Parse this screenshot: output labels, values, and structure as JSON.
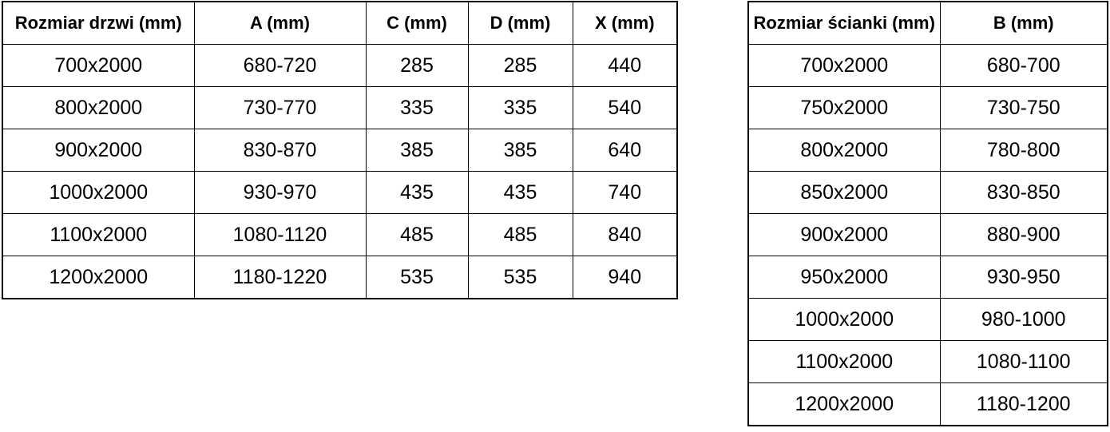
{
  "door_table": {
    "headers": [
      "Rozmiar drzwi (mm)",
      "A (mm)",
      "C (mm)",
      "D (mm)",
      "X (mm)"
    ],
    "rows": [
      [
        "700x2000",
        "680-720",
        "285",
        "285",
        "440"
      ],
      [
        "800x2000",
        "730-770",
        "335",
        "335",
        "540"
      ],
      [
        "900x2000",
        "830-870",
        "385",
        "385",
        "640"
      ],
      [
        "1000x2000",
        "930-970",
        "435",
        "435",
        "740"
      ],
      [
        "1100x2000",
        "1080-1120",
        "485",
        "485",
        "840"
      ],
      [
        "1200x2000",
        "1180-1220",
        "535",
        "535",
        "940"
      ]
    ]
  },
  "wall_table": {
    "headers": [
      "Rozmiar ścianki (mm)",
      "B (mm)"
    ],
    "rows": [
      [
        "700x2000",
        "680-700"
      ],
      [
        "750x2000",
        "730-750"
      ],
      [
        "800x2000",
        "780-800"
      ],
      [
        "850x2000",
        "830-850"
      ],
      [
        "900x2000",
        "880-900"
      ],
      [
        "950x2000",
        "930-950"
      ],
      [
        "1000x2000",
        "980-1000"
      ],
      [
        "1100x2000",
        "1080-1100"
      ],
      [
        "1200x2000",
        "1180-1200"
      ]
    ]
  },
  "colors": {
    "border": "#000000",
    "text": "#000000",
    "background": "#ffffff"
  }
}
